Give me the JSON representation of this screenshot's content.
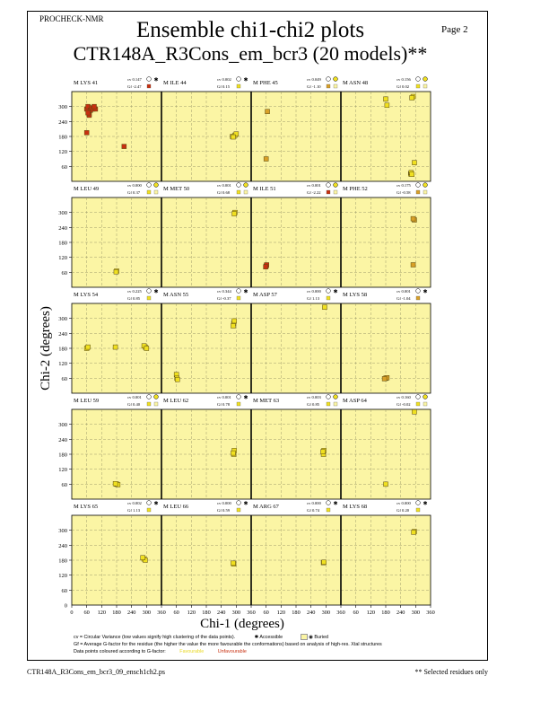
{
  "header": {
    "program": "PROCHECK-NMR",
    "page_label": "Page  2",
    "title": "Ensemble chi1-chi2 plots",
    "subtitle": "CTR148A_R3Cons_em_bcr3 (20 models)**"
  },
  "footer": {
    "filename": "CTR148A_R3Cons_em_bcr3_09_ensch1ch2.ps",
    "note": "** Selected residues only"
  },
  "legend": {
    "cv_text": "cv = Circular Variance (low values signify high clustering of the data points).",
    "accessible": "Accessible",
    "buried": "Buried",
    "gf_text": "Gf = Average G-factor for the residue (the higher the value the more favourable the conformations) based on analysis of high-res. Xtal structures",
    "colour_text": "Data points coloured according to G-factor:",
    "favourable": "Favourable",
    "unfavourable": "Unfavourable"
  },
  "colors": {
    "panel_background": "#fbf5a4",
    "favourable": "#f0e020",
    "unfavourable": "#c83010",
    "middle": "#d8a028"
  },
  "chart_data": {
    "type": "scatter",
    "xlabel": "Chi-1 (degrees)",
    "ylabel": "Chi-2 (degrees)",
    "xlim": [
      0,
      360
    ],
    "ylim": [
      0,
      360
    ],
    "x_ticks": [
      0,
      60,
      120,
      180,
      240,
      300,
      360
    ],
    "y_ticks": [
      0,
      60,
      120,
      180,
      240,
      300
    ],
    "grid": true,
    "panels": [
      {
        "label": "M LYS 41",
        "cv": "cv 0.147",
        "gf": "Gf -2.47",
        "access": "accessible",
        "gcolor": "#c83010",
        "points": [
          [
            60,
            290
          ],
          [
            65,
            300
          ],
          [
            70,
            270
          ],
          [
            75,
            285
          ],
          [
            80,
            295
          ],
          [
            85,
            290
          ],
          [
            70,
            265
          ],
          [
            95,
            290
          ],
          [
            90,
            300
          ],
          [
            65,
            275
          ],
          [
            60,
            195
          ],
          [
            210,
            140
          ]
        ]
      },
      {
        "label": "M ILE 44",
        "cv": "cv 0.002",
        "gf": "Gf 0.15",
        "access": "accessible",
        "gcolor": "#f0e020",
        "points": [
          [
            285,
            180
          ],
          [
            295,
            185
          ],
          [
            300,
            190
          ],
          [
            288,
            178
          ]
        ]
      },
      {
        "label": "M PHE 45",
        "cv": "cv 0.049",
        "gf": "Gf -1.10",
        "access": "buried",
        "gcolor": "#d8a028",
        "points": [
          [
            65,
            280
          ],
          [
            60,
            90
          ]
        ]
      },
      {
        "label": "M ASN 48",
        "cv": "cv 0.156",
        "gf": "Gf 0.02",
        "access": "buried",
        "gcolor": "#f0e020",
        "points": [
          [
            180,
            330
          ],
          [
            185,
            305
          ],
          [
            290,
            340
          ],
          [
            285,
            335
          ],
          [
            295,
            75
          ],
          [
            280,
            30
          ],
          [
            282,
            35
          ],
          [
            285,
            28
          ]
        ]
      },
      {
        "label": "M LEU 49",
        "cv": "cv 0.000",
        "gf": "Gf 0.37",
        "access": "buried",
        "gcolor": "#f0e020",
        "points": [
          [
            180,
            65
          ],
          [
            178,
            62
          ]
        ]
      },
      {
        "label": "M MET 50",
        "cv": "cv 0.001",
        "gf": "Gf 0.68",
        "access": "buried",
        "gcolor": "#f0e020",
        "points": [
          [
            295,
            300
          ],
          [
            292,
            295
          ]
        ]
      },
      {
        "label": "M ILE 51",
        "cv": "cv 0.001",
        "gf": "Gf -2.22",
        "access": "buried",
        "gcolor": "#c83010",
        "points": [
          [
            60,
            85
          ],
          [
            62,
            90
          ],
          [
            58,
            82
          ]
        ]
      },
      {
        "label": "M PHE 52",
        "cv": "cv 0.175",
        "gf": "Gf -0.58",
        "access": "buried",
        "gcolor": "#d8a028",
        "points": [
          [
            295,
            270
          ],
          [
            290,
            275
          ],
          [
            290,
            90
          ]
        ]
      },
      {
        "label": "M LYS 54",
        "cv": "cv 0.225",
        "gf": "Gf 0.85",
        "access": "accessible",
        "gcolor": "#f0e020",
        "points": [
          [
            60,
            180
          ],
          [
            65,
            185
          ],
          [
            175,
            185
          ],
          [
            295,
            185
          ],
          [
            290,
            190
          ],
          [
            300,
            180
          ]
        ]
      },
      {
        "label": "M ASN 55",
        "cv": "cv 0.344",
        "gf": "Gf -0.37",
        "access": "accessible",
        "gcolor": "#f0e020",
        "points": [
          [
            60,
            75
          ],
          [
            62,
            60
          ],
          [
            64,
            55
          ],
          [
            290,
            280
          ],
          [
            292,
            290
          ],
          [
            288,
            270
          ]
        ]
      },
      {
        "label": "M ASP 57",
        "cv": "cv 0.000",
        "gf": "Gf 1.13",
        "access": "accessible",
        "gcolor": "#f0e020",
        "points": [
          [
            295,
            345
          ]
        ]
      },
      {
        "label": "M LYS 58",
        "cv": "cv 0.001",
        "gf": "Gf -1.04",
        "access": "accessible",
        "gcolor": "#d8a028",
        "points": [
          [
            180,
            60
          ],
          [
            185,
            62
          ],
          [
            175,
            58
          ]
        ]
      },
      {
        "label": "M LEU 59",
        "cv": "cv 0.001",
        "gf": "Gf 0.40",
        "access": "buried",
        "gcolor": "#f0e020",
        "points": [
          [
            180,
            60
          ],
          [
            185,
            58
          ],
          [
            175,
            62
          ]
        ]
      },
      {
        "label": "M LEU 62",
        "cv": "cv 0.001",
        "gf": "Gf 0.78",
        "access": "accessible",
        "gcolor": "#f0e020",
        "points": [
          [
            290,
            180
          ],
          [
            292,
            195
          ],
          [
            288,
            185
          ]
        ]
      },
      {
        "label": "M MET 63",
        "cv": "cv 0.003",
        "gf": "Gf 0.85",
        "access": "buried",
        "gcolor": "#f0e020",
        "points": [
          [
            290,
            180
          ],
          [
            292,
            195
          ],
          [
            288,
            190
          ]
        ]
      },
      {
        "label": "M ASP 64",
        "cv": "cv 0.160",
        "gf": "Gf -0.02",
        "access": "buried",
        "gcolor": "#f0e020",
        "points": [
          [
            180,
            60
          ],
          [
            295,
            350
          ]
        ]
      },
      {
        "label": "M LYS 65",
        "cv": "cv 0.002",
        "gf": "Gf 1.13",
        "access": "accessible",
        "gcolor": "#f0e020",
        "points": [
          [
            290,
            185
          ],
          [
            295,
            180
          ],
          [
            285,
            190
          ]
        ]
      },
      {
        "label": "M LEU 66",
        "cv": "cv 0.000",
        "gf": "Gf 0.59",
        "access": "accessible",
        "gcolor": "#f0e020",
        "points": [
          [
            290,
            165
          ],
          [
            288,
            168
          ]
        ]
      },
      {
        "label": "M ARG 67",
        "cv": "cv 0.000",
        "gf": "Gf 0.74",
        "access": "accessible",
        "gcolor": "#f0e020",
        "points": [
          [
            290,
            170
          ],
          [
            292,
            172
          ]
        ]
      },
      {
        "label": "M LYS 68",
        "cv": "cv 0.000",
        "gf": "Gf 0.20",
        "access": "accessible",
        "gcolor": "#f0e020",
        "points": [
          [
            295,
            295
          ],
          [
            292,
            292
          ]
        ]
      }
    ]
  }
}
